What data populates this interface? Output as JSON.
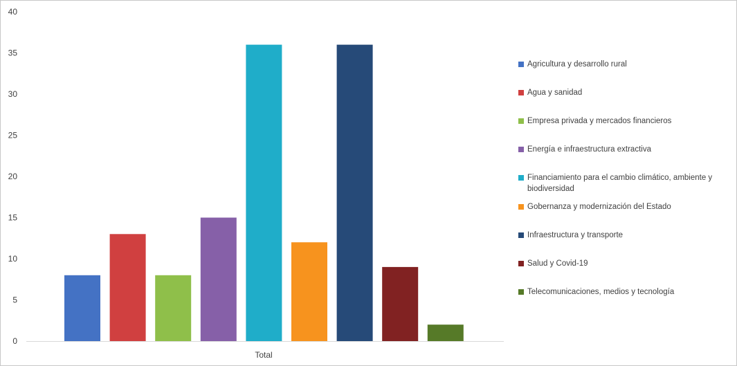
{
  "chart_data": {
    "type": "bar",
    "categories": [
      "Total"
    ],
    "ylim": [
      0,
      40
    ],
    "yticks": [
      0,
      5,
      10,
      15,
      20,
      25,
      30,
      35,
      40
    ],
    "grid": false,
    "legend_position": "right",
    "series": [
      {
        "name": "Agricultura y desarrollo rural",
        "values": [
          8
        ],
        "color": "#4472c4"
      },
      {
        "name": "Agua y sanidad",
        "values": [
          13
        ],
        "color": "#d04040"
      },
      {
        "name": "Empresa privada y mercados financieros",
        "values": [
          8
        ],
        "color": "#8fbf4a"
      },
      {
        "name": "Energía e infraestructura extractiva",
        "values": [
          15
        ],
        "color": "#8660a8"
      },
      {
        "name": "Financiamiento para el cambio climático, ambiente y biodiversidad",
        "values": [
          36
        ],
        "color": "#1fadc9"
      },
      {
        "name": "Gobernanza y modernización del Estado",
        "values": [
          12
        ],
        "color": "#f7931e"
      },
      {
        "name": "Infraestructura y transporte",
        "values": [
          36
        ],
        "color": "#264a78"
      },
      {
        "name": "Salud y Covid-19",
        "values": [
          9
        ],
        "color": "#812222"
      },
      {
        "name": "Telecomunicaciones, medios y tecnología",
        "values": [
          2
        ],
        "color": "#567a28"
      }
    ]
  }
}
